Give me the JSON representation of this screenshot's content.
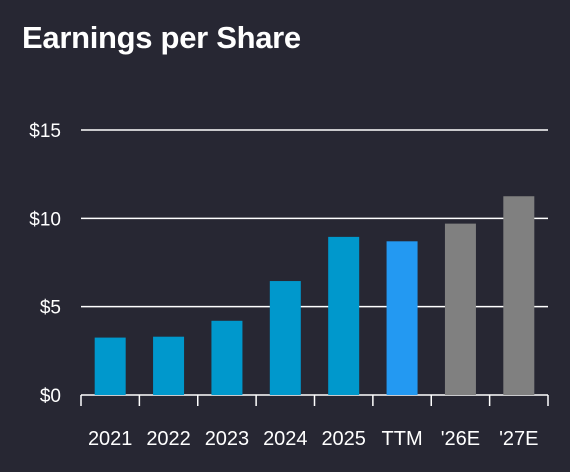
{
  "chart_data": {
    "type": "bar",
    "title": "Earnings per Share",
    "categories": [
      "2021",
      "2022",
      "2023",
      "2024",
      "2025",
      "TTM",
      "'26E",
      "'27E"
    ],
    "values": [
      3.25,
      3.3,
      4.2,
      6.45,
      8.95,
      8.7,
      9.7,
      11.25
    ],
    "bar_colors": [
      "#0098cc",
      "#0098cc",
      "#0098cc",
      "#0098cc",
      "#0098cc",
      "#2399f2",
      "#808080",
      "#808080"
    ],
    "ylim": [
      0,
      15
    ],
    "yticks": [
      0,
      5,
      10,
      15
    ],
    "ytick_labels": [
      "$0",
      "$5",
      "$10",
      "$15"
    ],
    "grid": true,
    "xlabel": "",
    "ylabel": ""
  },
  "colors": {
    "background": "#272733",
    "gridline": "#ffffff",
    "text": "#ffffff"
  }
}
